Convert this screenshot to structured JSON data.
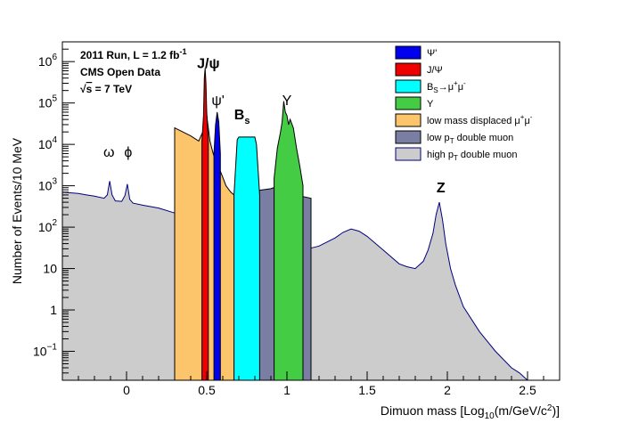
{
  "chart_data": {
    "type": "area",
    "x_axis": {
      "label_parts": [
        "Dimuon mass [Log",
        "10",
        "(m/GeV/c",
        "2",
        ")]"
      ],
      "range": [
        -0.4,
        2.7
      ],
      "ticks": [
        0,
        0.5,
        1,
        1.5,
        2,
        2.5
      ],
      "tick_labels": [
        "0",
        "0.5",
        "1",
        "1.5",
        "2",
        "2.5"
      ]
    },
    "y_axis": {
      "label": "Number of Events/10 MeV",
      "scale": "log",
      "range": [
        0.02,
        3000000
      ],
      "ticks": [
        0.1,
        1,
        10,
        100,
        1000,
        10000,
        100000,
        1000000
      ],
      "tick_labels": [
        {
          "base": "10",
          "exp": "−1"
        },
        {
          "base": "1",
          "exp": ""
        },
        {
          "base": "10",
          "exp": ""
        },
        {
          "base": "10",
          "exp": "2"
        },
        {
          "base": "10",
          "exp": "3"
        },
        {
          "base": "10",
          "exp": "4"
        },
        {
          "base": "10",
          "exp": "5"
        },
        {
          "base": "10",
          "exp": "6"
        }
      ]
    },
    "info_text": {
      "line1": {
        "text": "2011 Run, L = 1.2 fb",
        "sup": "-1"
      },
      "line2": "CMS Open Data",
      "line3": {
        "radical": "√",
        "s": "s",
        "rest": " = 7 TeV"
      }
    },
    "peak_labels": [
      {
        "text": "ω",
        "x": -0.11,
        "y": 5000
      },
      {
        "text": "ϕ",
        "x": 0.01,
        "y": 5000
      },
      {
        "text": "J/ψ",
        "x": 0.51,
        "y": 700000
      },
      {
        "text": "ψ'",
        "x": 0.57,
        "y": 90000
      },
      {
        "text": "B",
        "sub": "s",
        "x": 0.72,
        "y": 40000
      },
      {
        "text": "Υ",
        "x": 1.0,
        "y": 90000
      },
      {
        "text": "Z",
        "x": 1.96,
        "y": 700
      }
    ],
    "legend": [
      {
        "label": "Ψ'",
        "color": "#0000ee",
        "outline": "#000000"
      },
      {
        "label": "J/Ψ",
        "color": "#ee0000",
        "outline": "#000000"
      },
      {
        "label": "B",
        "sub": "S",
        "label2": "→μ",
        "sup2": "+",
        "label3": "μ",
        "sup3": "-",
        "color": "#00ffff",
        "outline": "#000000"
      },
      {
        "label": "Υ",
        "color": "#44cc44",
        "outline": "#000000"
      },
      {
        "label": "low mass displaced μ",
        "sup": "+",
        "label2": "μ",
        "sup2": "-",
        "color": "#fdc56b",
        "outline": "#000000"
      },
      {
        "label": "low p",
        "sub": "T",
        "label2": " double muon",
        "color": "#7a7ea3",
        "outline": "#000000"
      },
      {
        "label": "high p",
        "sub": "T",
        "label2": " double muon",
        "color": "#cccccc",
        "outline": "#000080"
      }
    ],
    "series": [
      {
        "name": "high pT double muon",
        "color": "#cccccc",
        "line_color": "#000080",
        "x": [
          -0.4,
          -0.3,
          -0.25,
          -0.2,
          -0.14,
          -0.12,
          -0.105,
          -0.09,
          -0.07,
          -0.03,
          -0.01,
          0.005,
          0.02,
          0.04,
          0.1,
          0.2,
          0.3,
          0.4,
          0.44,
          0.47,
          0.48,
          0.49,
          0.5,
          0.52,
          0.54,
          0.55,
          0.565,
          0.58,
          0.6,
          0.65,
          0.7,
          0.75,
          0.8,
          0.85,
          0.9,
          0.95,
          0.97,
          0.98,
          0.99,
          1.0,
          1.02,
          1.04,
          1.1,
          1.2,
          1.3,
          1.35,
          1.4,
          1.45,
          1.5,
          1.6,
          1.7,
          1.75,
          1.8,
          1.85,
          1.88,
          1.91,
          1.93,
          1.95,
          1.97,
          1.99,
          2.02,
          2.05,
          2.1,
          2.2,
          2.3,
          2.4,
          2.45,
          2.5
        ],
        "y": [
          700,
          650,
          600,
          560,
          500,
          600,
          1300,
          600,
          430,
          420,
          580,
          1100,
          470,
          380,
          340,
          290,
          220,
          170,
          150,
          130,
          180,
          280,
          300,
          110,
          90,
          120,
          190,
          80,
          65,
          50,
          40,
          30,
          26,
          22,
          20,
          20,
          30,
          200,
          400,
          180,
          40,
          30,
          28,
          35,
          55,
          75,
          90,
          80,
          60,
          28,
          13,
          11,
          10,
          15,
          28,
          70,
          200,
          400,
          150,
          40,
          10,
          4,
          1.2,
          0.3,
          0.1,
          0.04,
          0.03,
          0.02
        ]
      },
      {
        "name": "low pT double muon",
        "color": "#7a7ea3",
        "line_color": "#000000",
        "x": [
          0.3,
          0.35,
          0.4,
          0.45,
          0.48,
          0.49,
          0.5,
          0.52,
          0.55,
          0.565,
          0.58,
          0.6,
          0.7,
          0.8,
          0.9,
          0.95,
          0.97,
          0.98,
          0.99,
          1.0,
          1.02,
          1.05,
          1.1,
          1.15
        ],
        "y": [
          1200,
          1000,
          900,
          800,
          1500,
          4500,
          2500,
          1200,
          800,
          2000,
          800,
          550,
          600,
          750,
          850,
          1000,
          1800,
          3000,
          2500,
          1600,
          900,
          650,
          550,
          500
        ]
      },
      {
        "name": "low mass displaced μ+μ-",
        "color": "#fdc56b",
        "line_color": "#000000",
        "x": [
          0.3,
          0.35,
          0.4,
          0.45,
          0.48,
          0.49,
          0.5,
          0.52,
          0.54,
          0.56,
          0.58,
          0.6,
          0.62,
          0.65,
          0.67
        ],
        "y": [
          25000,
          20000,
          16000,
          12000,
          22000,
          90000,
          50000,
          12000,
          6000,
          3500,
          2500,
          1600,
          1000,
          700,
          600
        ]
      },
      {
        "name": "B_s → μ+μ-",
        "color": "#00ffff",
        "line_color": "#000000",
        "x": [
          0.67,
          0.69,
          0.7,
          0.75,
          0.8,
          0.81,
          0.83
        ],
        "y": [
          600,
          13000,
          15000,
          15000,
          15000,
          10000,
          600
        ]
      },
      {
        "name": "Υ",
        "color": "#44cc44",
        "line_color": "#000000",
        "x": [
          0.92,
          0.94,
          0.96,
          0.97,
          0.98,
          0.99,
          1.0,
          1.01,
          1.02,
          1.04,
          1.06,
          1.08,
          1.1
        ],
        "y": [
          1500,
          8000,
          20000,
          35000,
          110000,
          60000,
          50000,
          30000,
          40000,
          25000,
          8000,
          3000,
          1000
        ]
      },
      {
        "name": "J/Ψ",
        "color": "#ee0000",
        "line_color": "#000000",
        "x": [
          0.47,
          0.48,
          0.485,
          0.49,
          0.495,
          0.5,
          0.51
        ],
        "y": [
          12000,
          50000,
          400000,
          700000,
          300000,
          60000,
          12000
        ]
      },
      {
        "name": "Ψ'",
        "color": "#0000ee",
        "line_color": "#000000",
        "x": [
          0.545,
          0.555,
          0.565,
          0.575,
          0.585
        ],
        "y": [
          6000,
          30000,
          60000,
          35000,
          6000
        ]
      }
    ]
  }
}
